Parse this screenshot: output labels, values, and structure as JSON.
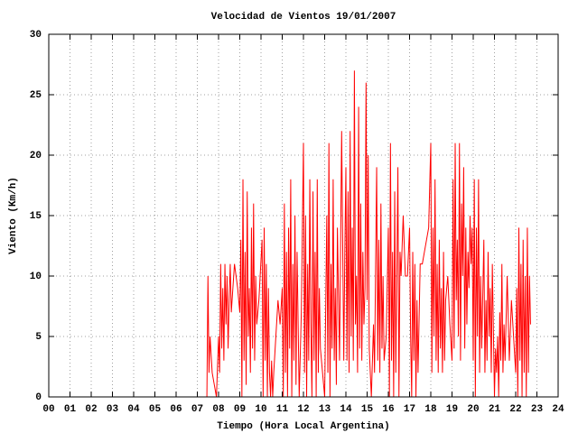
{
  "chart_data": {
    "type": "line",
    "title": "Velocidad de Vientos 19/01/2007",
    "x_label": "Tiempo (Hora Local Argentina)",
    "y_label": "Viento (Km/h)",
    "xlim": [
      0,
      24
    ],
    "ylim": [
      0,
      30
    ],
    "xticks": [
      {
        "value": 0,
        "label": "00"
      },
      {
        "value": 1,
        "label": "01"
      },
      {
        "value": 2,
        "label": "02"
      },
      {
        "value": 3,
        "label": "03"
      },
      {
        "value": 4,
        "label": "04"
      },
      {
        "value": 5,
        "label": "05"
      },
      {
        "value": 6,
        "label": "06"
      },
      {
        "value": 7,
        "label": "07"
      },
      {
        "value": 8,
        "label": "08"
      },
      {
        "value": 9,
        "label": "09"
      },
      10,
      11,
      12,
      13,
      14,
      15,
      16,
      17,
      18,
      19,
      20,
      21,
      22,
      23,
      24
    ],
    "yticks": [
      0,
      5,
      10,
      15,
      20,
      25,
      30
    ],
    "grid": true,
    "series": [
      {
        "color": "#ff0000",
        "x": [
          7.45,
          7.5,
          7.55,
          7.6,
          7.7,
          7.8,
          7.9,
          8.0,
          8.05,
          8.1,
          8.15,
          8.2,
          8.25,
          8.3,
          8.35,
          8.4,
          8.45,
          8.5,
          8.55,
          8.6,
          8.75,
          8.9,
          9.0,
          9.05,
          9.1,
          9.15,
          9.2,
          9.25,
          9.3,
          9.35,
          9.4,
          9.45,
          9.5,
          9.55,
          9.6,
          9.65,
          9.7,
          9.75,
          9.8,
          9.9,
          10.05,
          10.1,
          10.15,
          10.2,
          10.25,
          10.3,
          10.35,
          10.4,
          10.45,
          10.5,
          10.55,
          10.6,
          10.7,
          10.8,
          10.9,
          11.0,
          11.05,
          11.1,
          11.15,
          11.2,
          11.25,
          11.3,
          11.35,
          11.4,
          11.45,
          11.5,
          11.55,
          11.6,
          11.65,
          11.7,
          11.8,
          11.9,
          12.0,
          12.05,
          12.1,
          12.15,
          12.2,
          12.25,
          12.3,
          12.35,
          12.4,
          12.45,
          12.5,
          12.55,
          12.6,
          12.65,
          12.7,
          12.75,
          12.8,
          12.9,
          13.0,
          13.1,
          13.15,
          13.2,
          13.25,
          13.3,
          13.35,
          13.4,
          13.45,
          13.5,
          13.55,
          13.6,
          13.7,
          13.8,
          13.9,
          13.95,
          14.0,
          14.05,
          14.1,
          14.15,
          14.2,
          14.25,
          14.3,
          14.35,
          14.4,
          14.45,
          14.5,
          14.55,
          14.6,
          14.65,
          14.7,
          14.75,
          14.8,
          14.85,
          14.9,
          14.95,
          15.0,
          15.05,
          15.1,
          15.2,
          15.3,
          15.35,
          15.4,
          15.45,
          15.5,
          15.55,
          15.6,
          15.65,
          15.7,
          15.75,
          15.8,
          15.9,
          16.0,
          16.05,
          16.1,
          16.15,
          16.2,
          16.25,
          16.3,
          16.35,
          16.4,
          16.45,
          16.5,
          16.55,
          16.6,
          16.7,
          16.8,
          16.9,
          17.0,
          17.05,
          17.1,
          17.15,
          17.2,
          17.25,
          17.3,
          17.35,
          17.4,
          17.5,
          17.6,
          17.7,
          17.8,
          17.9,
          18.0,
          18.05,
          18.1,
          18.15,
          18.2,
          18.25,
          18.3,
          18.35,
          18.4,
          18.45,
          18.5,
          18.55,
          18.6,
          18.65,
          18.7,
          18.8,
          18.9,
          19.0,
          19.05,
          19.1,
          19.15,
          19.2,
          19.25,
          19.3,
          19.35,
          19.4,
          19.45,
          19.5,
          19.55,
          19.6,
          19.65,
          19.7,
          19.75,
          19.8,
          19.85,
          19.9,
          19.95,
          20.0,
          20.05,
          20.1,
          20.15,
          20.2,
          20.25,
          20.3,
          20.35,
          20.4,
          20.5,
          20.55,
          20.6,
          20.65,
          20.7,
          20.75,
          20.8,
          20.85,
          20.9,
          21.0,
          21.05,
          21.1,
          21.15,
          21.2,
          21.25,
          21.3,
          21.35,
          21.4,
          21.45,
          21.5,
          21.6,
          21.7,
          21.8,
          21.9,
          22.0,
          22.05,
          22.1,
          22.15,
          22.2,
          22.25,
          22.3,
          22.35,
          22.4,
          22.45,
          22.5,
          22.55,
          22.6,
          22.65,
          22.7
        ],
        "values": [
          0,
          10,
          2,
          5,
          2,
          1,
          0,
          5,
          2,
          11,
          4,
          9,
          3,
          11,
          6,
          10,
          4,
          8,
          11,
          7,
          11,
          9,
          7,
          13,
          0,
          18,
          3,
          12,
          1,
          17,
          5,
          9,
          2,
          14,
          4,
          16,
          3,
          10,
          6,
          8,
          13,
          0,
          14,
          3,
          11,
          0,
          9,
          2,
          0,
          3,
          0,
          2,
          5,
          8,
          6,
          9,
          0,
          16,
          2,
          12,
          0,
          14,
          4,
          18,
          0,
          11,
          3,
          15,
          1,
          12,
          0,
          7,
          21,
          2,
          15,
          0,
          11,
          3,
          18,
          6,
          0,
          17,
          3,
          12,
          0,
          18,
          2,
          9,
          4,
          2,
          0,
          15,
          2,
          21,
          0,
          11,
          4,
          18,
          3,
          9,
          1,
          14,
          3,
          22,
          3,
          12,
          19,
          3,
          17,
          2,
          22,
          5,
          14,
          3,
          27,
          6,
          10,
          2,
          24,
          4,
          16,
          3,
          12,
          6,
          9,
          26,
          8,
          20,
          4,
          0,
          6,
          2,
          11,
          19,
          3,
          13,
          2,
          16,
          4,
          10,
          3,
          5,
          14,
          0,
          21,
          3,
          12,
          0,
          17,
          2,
          10,
          19,
          0,
          12,
          10,
          15,
          10,
          10,
          14,
          5,
          0,
          12,
          3,
          11,
          0,
          8,
          2,
          11,
          11,
          12,
          13,
          14,
          21,
          2,
          14,
          5,
          18,
          3,
          11,
          2,
          13,
          4,
          9,
          2,
          12,
          3,
          8,
          10,
          6,
          3,
          18,
          4,
          21,
          8,
          13,
          5,
          21,
          3,
          16,
          10,
          19,
          4,
          14,
          6,
          12,
          9,
          15,
          11,
          14,
          3,
          18,
          0,
          14,
          5,
          18,
          2,
          10,
          4,
          13,
          2,
          8,
          3,
          12,
          5,
          9,
          2,
          11,
          0,
          4,
          2,
          5,
          0,
          7,
          3,
          11,
          2,
          6,
          3,
          10,
          3,
          8,
          5,
          2,
          9,
          0,
          14,
          3,
          11,
          0,
          13,
          2,
          10,
          0,
          14,
          2,
          10,
          6
        ]
      }
    ]
  }
}
